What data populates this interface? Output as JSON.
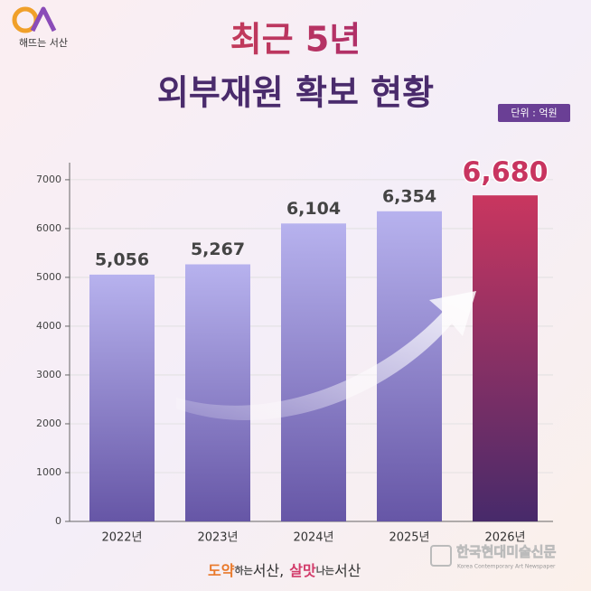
{
  "logo": {
    "text": "해뜨는 서산"
  },
  "chart_data": {
    "type": "bar",
    "title": [
      "최근 5년",
      "외부재원 확보 현황"
    ],
    "unit": "단위 : 억원",
    "categories": [
      "2022년",
      "2023년",
      "2024년",
      "2025년",
      "2026년"
    ],
    "values": [
      5056,
      5267,
      6104,
      6354,
      6680
    ],
    "value_labels": [
      "5,056",
      "5,267",
      "6,104",
      "6,354",
      "6,680"
    ],
    "colors": [
      "#b7b2ee",
      "#b7b2ee",
      "#b7b2ee",
      "#b7b2ee",
      "#c9365f"
    ],
    "ylim": [
      0,
      7350
    ],
    "yticks": [
      0,
      1000,
      2000,
      3000,
      4000,
      5000,
      6000,
      7000
    ],
    "grid": true
  },
  "footer": {
    "slogan": [
      "도약",
      "하는",
      "서산,",
      "살맛",
      "나는",
      "서산"
    ],
    "publisher": "한국현대미술신문",
    "publisher_en": "Korea Contemporary Art Newspaper"
  }
}
